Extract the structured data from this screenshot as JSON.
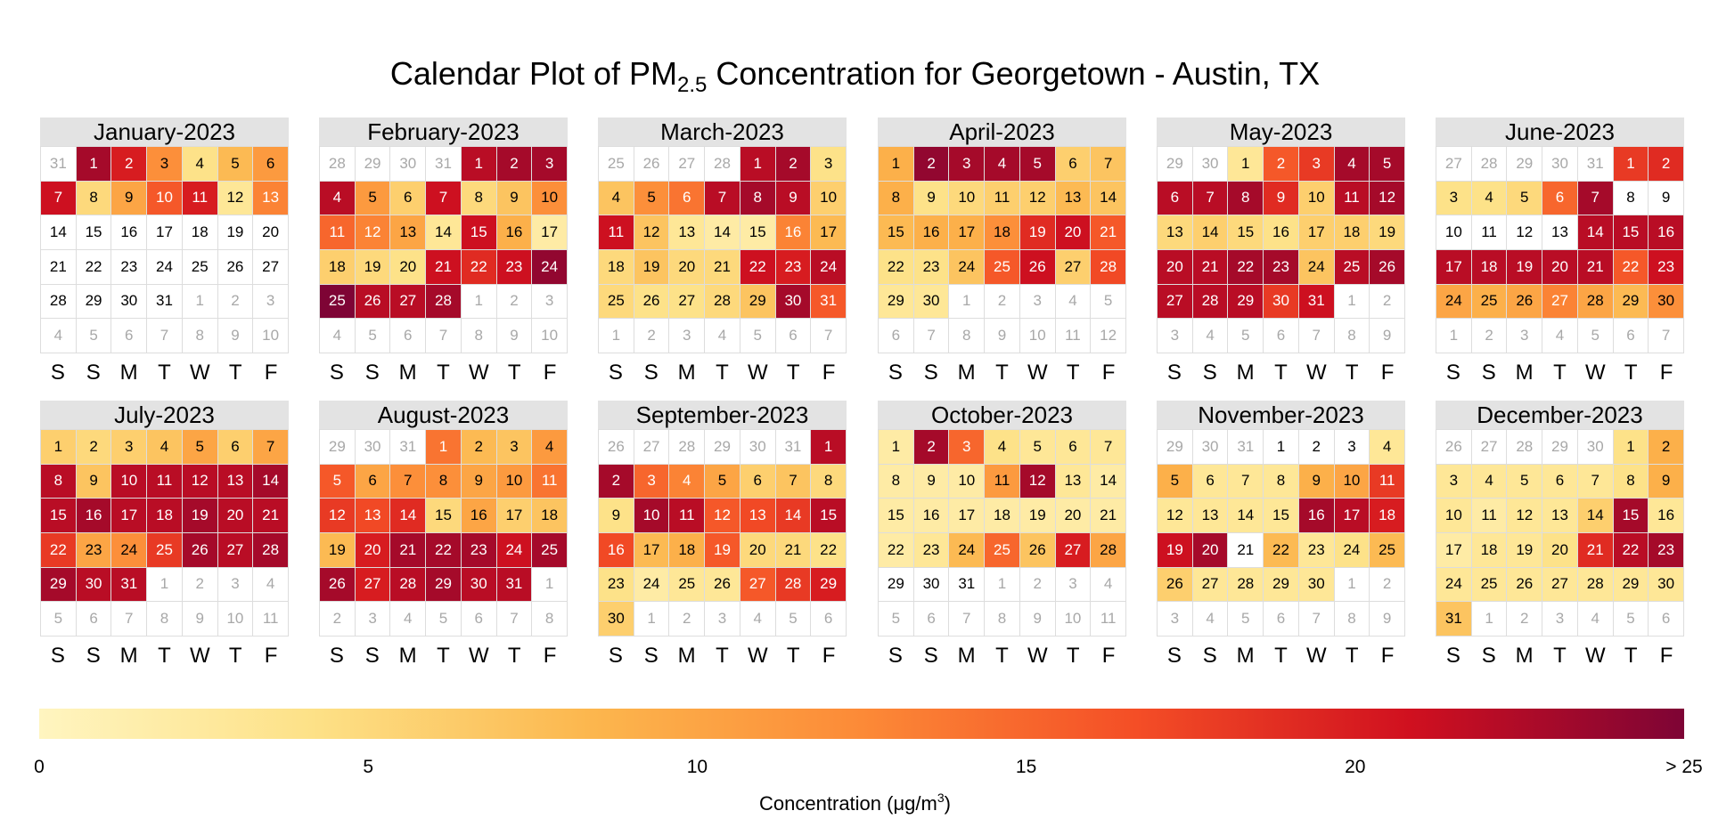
{
  "chart_data": {
    "type": "heatmap",
    "title": {
      "prefix": "Calendar Plot of PM",
      "subscript": "2.5",
      "suffix": " Concentration for Georgetown - Austin, TX"
    },
    "weekday_labels": [
      "S",
      "S",
      "M",
      "T",
      "W",
      "T",
      "F"
    ],
    "color_scale": {
      "stops": [
        "#fff5c0",
        "#fde187",
        "#fcb74e",
        "#fc8a37",
        "#f44e26",
        "#d0101f",
        "#7e0435"
      ],
      "min": 0,
      "max": 25,
      "ticks": [
        0,
        5,
        10,
        15,
        20,
        25
      ],
      "tick_labels": [
        "0",
        "5",
        "10",
        "15",
        "20",
        "> 25"
      ],
      "title": {
        "prefix": "Concentration (μg/m",
        "superscript": "3",
        "suffix": ")"
      }
    },
    "months": [
      {
        "label": "January-2023",
        "start_offset": 1,
        "prev_month_days": 31,
        "values": [
          23,
          20,
          12,
          4,
          8,
          11,
          21,
          5,
          10,
          16,
          20,
          3,
          13,
          0,
          0,
          0,
          0,
          0,
          0,
          0,
          0,
          0,
          0,
          0,
          0,
          0,
          0,
          0,
          0,
          0,
          0
        ]
      },
      {
        "label": "February-2023",
        "start_offset": 4,
        "prev_month_days": 31,
        "values": [
          22,
          23,
          23,
          22,
          11,
          6,
          21,
          5,
          7,
          12,
          15,
          13,
          10,
          3,
          21,
          9,
          2,
          6,
          5,
          4,
          21,
          19,
          21,
          24,
          25,
          22,
          22,
          23
        ]
      },
      {
        "label": "March-2023",
        "start_offset": 4,
        "prev_month_days": 28,
        "values": [
          22,
          23,
          4,
          7,
          12,
          14,
          22,
          23,
          22,
          6,
          21,
          7,
          3,
          2,
          2,
          13,
          8,
          5,
          7,
          5,
          5,
          21,
          20,
          22,
          5,
          4,
          4,
          5,
          7,
          23,
          16
        ]
      },
      {
        "label": "April-2023",
        "start_offset": 0,
        "prev_month_days": 31,
        "values": [
          9,
          24,
          23,
          23,
          23,
          6,
          7,
          9,
          4,
          5,
          6,
          6,
          8,
          7,
          8,
          9,
          9,
          12,
          19,
          21,
          16,
          4,
          4,
          7,
          16,
          21,
          6,
          17,
          3,
          3
        ]
      },
      {
        "label": "May-2023",
        "start_offset": 2,
        "prev_month_days": 30,
        "values": [
          3,
          16,
          18,
          23,
          23,
          22,
          22,
          23,
          19,
          6,
          22,
          23,
          5,
          6,
          5,
          4,
          6,
          6,
          5,
          22,
          22,
          23,
          23,
          7,
          22,
          23,
          22,
          22,
          22,
          18,
          21
        ]
      },
      {
        "label": "June-2023",
        "start_offset": 5,
        "prev_month_days": 31,
        "values": [
          18,
          19,
          4,
          4,
          5,
          15,
          23,
          0,
          0,
          0,
          0,
          0,
          0,
          22,
          22,
          22,
          22,
          22,
          22,
          22,
          22,
          16,
          21,
          10,
          9,
          10,
          13,
          10,
          8,
          12
        ]
      },
      {
        "label": "July-2023",
        "start_offset": 0,
        "prev_month_days": 30,
        "values": [
          6,
          5,
          6,
          7,
          10,
          6,
          10,
          22,
          7,
          22,
          22,
          22,
          22,
          23,
          22,
          23,
          22,
          22,
          23,
          22,
          22,
          18,
          10,
          12,
          18,
          23,
          22,
          23,
          23,
          22,
          22
        ]
      },
      {
        "label": "August-2023",
        "start_offset": 3,
        "prev_month_days": 31,
        "values": [
          14,
          8,
          7,
          11,
          16,
          10,
          12,
          12,
          10,
          11,
          14,
          18,
          17,
          19,
          5,
          10,
          6,
          7,
          8,
          20,
          23,
          23,
          23,
          21,
          23,
          23,
          20,
          22,
          23,
          22,
          22
        ]
      },
      {
        "label": "September-2023",
        "start_offset": 6,
        "prev_month_days": 31,
        "values": [
          22,
          23,
          15,
          13,
          10,
          6,
          7,
          5,
          4,
          23,
          22,
          16,
          17,
          18,
          22,
          17,
          8,
          9,
          16,
          5,
          5,
          4,
          4,
          2,
          3,
          3,
          16,
          18,
          20,
          6
        ]
      },
      {
        "label": "October-2023",
        "start_offset": 0,
        "prev_month_days": 30,
        "values": [
          2,
          23,
          15,
          4,
          3,
          3,
          3,
          2,
          2,
          2,
          11,
          23,
          3,
          2,
          2,
          2,
          2,
          2,
          2,
          2,
          2,
          2,
          3,
          8,
          15,
          7,
          20,
          10,
          0,
          0,
          0
        ]
      },
      {
        "label": "November-2023",
        "start_offset": 3,
        "prev_month_days": 31,
        "values": [
          0,
          0,
          0,
          3,
          9,
          3,
          3,
          3,
          9,
          10,
          18,
          3,
          3,
          3,
          3,
          23,
          22,
          20,
          21,
          23,
          0,
          8,
          3,
          4,
          8,
          6,
          3,
          3,
          3,
          3
        ]
      },
      {
        "label": "December-2023",
        "start_offset": 5,
        "prev_month_days": 30,
        "values": [
          4,
          9,
          3,
          3,
          3,
          3,
          3,
          4,
          9,
          3,
          2,
          3,
          3,
          6,
          23,
          3,
          2,
          3,
          3,
          4,
          19,
          22,
          23,
          3,
          3,
          3,
          3,
          3,
          3,
          3,
          7
        ]
      }
    ]
  }
}
